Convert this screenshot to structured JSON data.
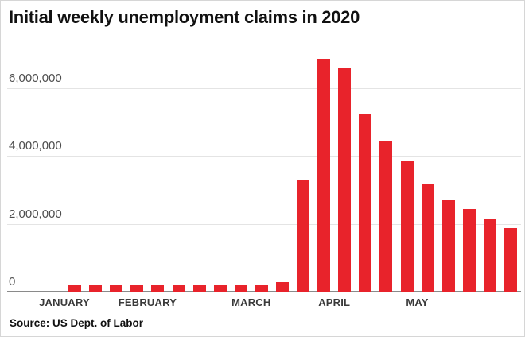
{
  "title": "Initial weekly unemployment claims in 2020",
  "source": "Source: US Dept. of Labor",
  "colors": {
    "bar": "#e8232b",
    "grid": "#e4e4e4",
    "axis": "#8a8a8a",
    "title_text": "#111111",
    "tick_text": "#4d4d4d",
    "month_text": "#3a3a3a",
    "border": "#d6d6d6",
    "background": "#ffffff"
  },
  "chart_data": {
    "type": "bar",
    "title": "Initial weekly unemployment claims in 2020",
    "xlabel": "",
    "ylabel": "",
    "ylim": [
      0,
      7000000
    ],
    "grid": "horizontal",
    "legend": "none",
    "x_unit": "week (January through May 2020)",
    "values": [
      214000,
      204000,
      223000,
      212000,
      201000,
      204000,
      215000,
      220000,
      217000,
      211000,
      282000,
      3307000,
      6867000,
      6615000,
      5237000,
      4442000,
      3867000,
      3176000,
      2687000,
      2446000,
      2123000,
      1877000
    ],
    "y_ticks": [
      {
        "value": 0,
        "label": "0"
      },
      {
        "value": 2000000,
        "label": "2,000,000"
      },
      {
        "value": 4000000,
        "label": "4,000,000"
      },
      {
        "value": 6000000,
        "label": "6,000,000"
      }
    ],
    "months": [
      {
        "label": "JANUARY",
        "start_index": 0,
        "weeks": 4
      },
      {
        "label": "FEBRUARY",
        "start_index": 4,
        "weeks": 5
      },
      {
        "label": "MARCH",
        "start_index": 9,
        "weeks": 4
      },
      {
        "label": "APRIL",
        "start_index": 13,
        "weeks": 4
      },
      {
        "label": "MAY",
        "start_index": 17,
        "weeks": 5
      }
    ],
    "source": "Source: US Dept. of Labor"
  }
}
